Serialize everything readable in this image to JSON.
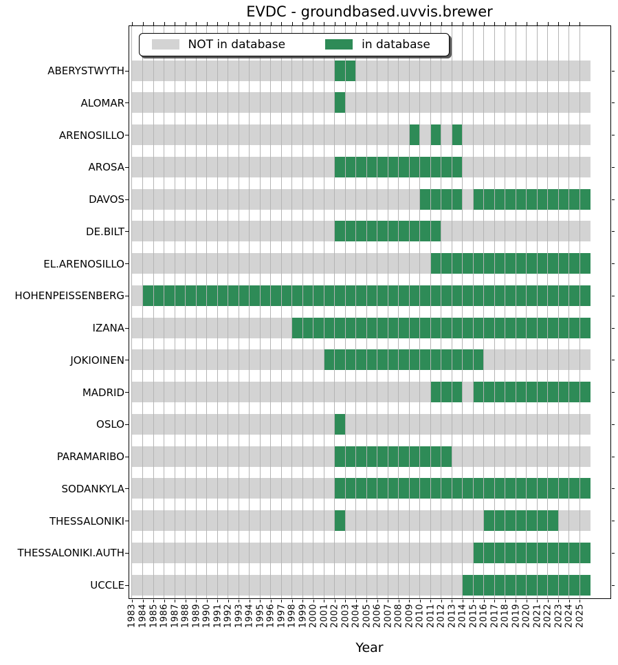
{
  "window": {
    "title": "EVDC - groundbased.uvvis.brewer"
  },
  "chart_data": {
    "type": "heatmap",
    "title": "EVDC - groundbased.uvvis.brewer",
    "xlabel": "Year",
    "ylabel": "",
    "x_range": [
      1982.71,
      2027.84
    ],
    "bars_span_years": [
      1983,
      2026
    ],
    "grid": true,
    "legend_position": "upper left",
    "legend": {
      "not_in_db": {
        "label": "NOT in database",
        "color": "#d3d3d3"
      },
      "in_db": {
        "label": "in database",
        "color": "#2e8b57"
      }
    },
    "x_ticks": [
      1983,
      1984,
      1985,
      1986,
      1987,
      1988,
      1989,
      1990,
      1991,
      1992,
      1993,
      1994,
      1995,
      1996,
      1997,
      1998,
      1999,
      2000,
      2001,
      2002,
      2003,
      2004,
      2005,
      2006,
      2007,
      2008,
      2009,
      2010,
      2011,
      2012,
      2013,
      2014,
      2015,
      2016,
      2017,
      2018,
      2019,
      2020,
      2021,
      2022,
      2023,
      2024,
      2025
    ],
    "stations": [
      {
        "name": "ABERYSTWYTH",
        "in_database_year_spans": [
          [
            2002,
            2003
          ]
        ]
      },
      {
        "name": "ALOMAR",
        "in_database_year_spans": [
          [
            2002,
            2002
          ]
        ]
      },
      {
        "name": "ARENOSILLO",
        "in_database_year_spans": [
          [
            2009,
            2009
          ],
          [
            2011,
            2011
          ],
          [
            2013,
            2013
          ]
        ]
      },
      {
        "name": "AROSA",
        "in_database_year_spans": [
          [
            2002,
            2013
          ]
        ]
      },
      {
        "name": "DAVOS",
        "in_database_year_spans": [
          [
            2010,
            2013
          ],
          [
            2015,
            2025
          ]
        ]
      },
      {
        "name": "DE.BILT",
        "in_database_year_spans": [
          [
            2002,
            2011
          ]
        ]
      },
      {
        "name": "EL.ARENOSILLO",
        "in_database_year_spans": [
          [
            2011,
            2025
          ]
        ]
      },
      {
        "name": "HOHENPEISSENBERG",
        "in_database_year_spans": [
          [
            1984,
            2025
          ]
        ]
      },
      {
        "name": "IZANA",
        "in_database_year_spans": [
          [
            1998,
            2025
          ]
        ]
      },
      {
        "name": "JOKIOINEN",
        "in_database_year_spans": [
          [
            2001,
            2015
          ]
        ]
      },
      {
        "name": "MADRID",
        "in_database_year_spans": [
          [
            2011,
            2013
          ],
          [
            2015,
            2025
          ]
        ]
      },
      {
        "name": "OSLO",
        "in_database_year_spans": [
          [
            2002,
            2002
          ]
        ]
      },
      {
        "name": "PARAMARIBO",
        "in_database_year_spans": [
          [
            2002,
            2012
          ]
        ]
      },
      {
        "name": "SODANKYLA",
        "in_database_year_spans": [
          [
            2002,
            2025
          ]
        ]
      },
      {
        "name": "THESSALONIKI",
        "in_database_year_spans": [
          [
            2002,
            2002
          ],
          [
            2016,
            2022
          ]
        ]
      },
      {
        "name": "THESSALONIKI.AUTH",
        "in_database_year_spans": [
          [
            2015,
            2025
          ]
        ]
      },
      {
        "name": "UCCLE",
        "in_database_year_spans": [
          [
            2014,
            2025
          ]
        ]
      }
    ]
  }
}
